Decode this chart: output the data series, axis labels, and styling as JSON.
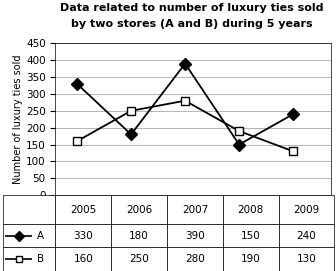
{
  "title_line1": "Data related to number of luxury ties sold",
  "title_line2": "by two stores (A and B) during 5 years",
  "ylabel": "Number of luxury ties sold",
  "years": [
    2005,
    2006,
    2007,
    2008,
    2009
  ],
  "A_values": [
    330,
    180,
    390,
    150,
    240
  ],
  "B_values": [
    160,
    250,
    280,
    190,
    130
  ],
  "ylim": [
    0,
    450
  ],
  "yticks": [
    0,
    50,
    100,
    150,
    200,
    250,
    300,
    350,
    400,
    450
  ],
  "title_fontsize": 8,
  "axis_fontsize": 7.5,
  "table_fontsize": 7.5
}
